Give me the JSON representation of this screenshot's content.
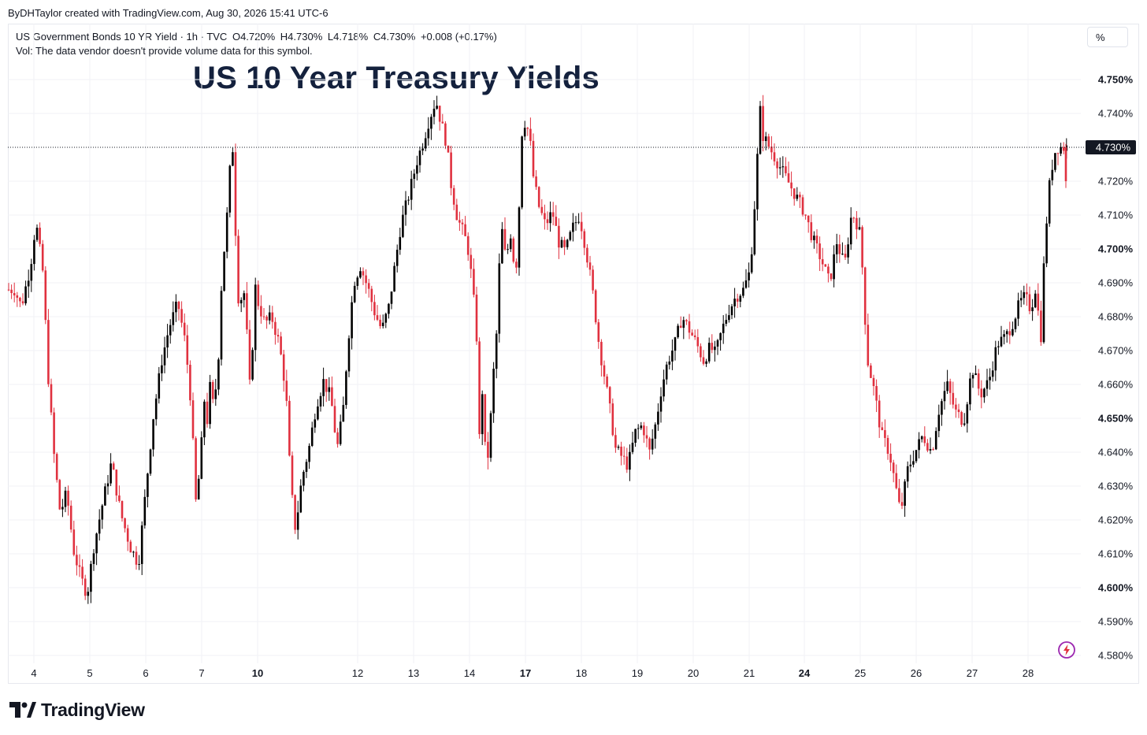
{
  "credit": "ByDHTaylor created with TradingView.com, Aug 30, 2026 15:41 UTC-6",
  "legend": {
    "symbol": "US Government Bonds 10 YR Yield · 1h · TVC",
    "open": "O4.720%",
    "high": "H4.730%",
    "low": "L4.718%",
    "close": "C4.730%",
    "change": "+0.008 (+0.17%)",
    "vol_note": "Vol: The data vendor doesn't provide volume data for this symbol."
  },
  "scale_button": "%",
  "brand": "TradingView",
  "colors": {
    "up": "#000000",
    "down": "#e0313f",
    "brand_icon": "#9c27b0"
  },
  "chart_data": {
    "type": "candlestick",
    "title": "US 10 Year Treasury Yields",
    "ylim": [
      4.575,
      4.755
    ],
    "y_ticks": [
      {
        "value": 4.75,
        "label": "4.750%",
        "bold": true
      },
      {
        "value": 4.74,
        "label": "4.740%",
        "bold": false
      },
      {
        "value": 4.72,
        "label": "4.720%",
        "bold": false
      },
      {
        "value": 4.71,
        "label": "4.710%",
        "bold": false
      },
      {
        "value": 4.7,
        "label": "4.700%",
        "bold": true
      },
      {
        "value": 4.69,
        "label": "4.690%",
        "bold": false
      },
      {
        "value": 4.68,
        "label": "4.680%",
        "bold": false
      },
      {
        "value": 4.67,
        "label": "4.670%",
        "bold": false
      },
      {
        "value": 4.66,
        "label": "4.660%",
        "bold": false
      },
      {
        "value": 4.65,
        "label": "4.650%",
        "bold": true
      },
      {
        "value": 4.64,
        "label": "4.640%",
        "bold": false
      },
      {
        "value": 4.63,
        "label": "4.630%",
        "bold": false
      },
      {
        "value": 4.62,
        "label": "4.620%",
        "bold": false
      },
      {
        "value": 4.61,
        "label": "4.610%",
        "bold": false
      },
      {
        "value": 4.6,
        "label": "4.600%",
        "bold": true
      },
      {
        "value": 4.59,
        "label": "4.590%",
        "bold": false
      },
      {
        "value": 4.58,
        "label": "4.580%",
        "bold": false
      }
    ],
    "last_price": {
      "value": 4.73,
      "label": "4.730%"
    },
    "x_ticks": [
      {
        "label": "4",
        "bold": false
      },
      {
        "label": "5",
        "bold": false
      },
      {
        "label": "6",
        "bold": false
      },
      {
        "label": "7",
        "bold": false
      },
      {
        "label": "10",
        "bold": true
      },
      {
        "label": "12",
        "bold": false
      },
      {
        "label": "13",
        "bold": false
      },
      {
        "label": "14",
        "bold": false
      },
      {
        "label": "17",
        "bold": true
      },
      {
        "label": "18",
        "bold": false
      },
      {
        "label": "19",
        "bold": false
      },
      {
        "label": "20",
        "bold": false
      },
      {
        "label": "21",
        "bold": false
      },
      {
        "label": "24",
        "bold": true
      },
      {
        "label": "25",
        "bold": false
      },
      {
        "label": "26",
        "bold": false
      },
      {
        "label": "27",
        "bold": false
      },
      {
        "label": "28",
        "bold": false
      }
    ],
    "x_domain": [
      3.65,
      28.55
    ],
    "path": [
      [
        3.65,
        4.688
      ],
      [
        3.78,
        4.683
      ],
      [
        3.95,
        4.695
      ],
      [
        4.05,
        4.708
      ],
      [
        4.18,
        4.693
      ],
      [
        4.28,
        4.662
      ],
      [
        4.38,
        4.64
      ],
      [
        4.5,
        4.622
      ],
      [
        4.62,
        4.628
      ],
      [
        4.75,
        4.611
      ],
      [
        4.88,
        4.603
      ],
      [
        5.0,
        4.598
      ],
      [
        5.12,
        4.612
      ],
      [
        5.3,
        4.626
      ],
      [
        5.45,
        4.637
      ],
      [
        5.62,
        4.622
      ],
      [
        5.8,
        4.612
      ],
      [
        5.95,
        4.607
      ],
      [
        6.08,
        4.628
      ],
      [
        6.22,
        4.65
      ],
      [
        6.38,
        4.667
      ],
      [
        6.52,
        4.677
      ],
      [
        6.68,
        4.684
      ],
      [
        6.82,
        4.672
      ],
      [
        6.92,
        4.655
      ],
      [
        7.02,
        4.623
      ],
      [
        7.15,
        4.649
      ],
      [
        7.3,
        4.657
      ],
      [
        7.45,
        4.648
      ],
      [
        7.62,
        4.662
      ],
      [
        7.78,
        4.652
      ],
      [
        7.92,
        4.66
      ],
      [
        8.05,
        4.668
      ],
      [
        8.18,
        4.686
      ],
      [
        8.3,
        4.695
      ],
      [
        8.42,
        4.703
      ],
      [
        8.55,
        4.711
      ],
      [
        8.7,
        4.724
      ],
      [
        8.8,
        4.733
      ],
      [
        8.95,
        4.722
      ],
      [
        9.02,
        4.7
      ],
      [
        9.12,
        4.688
      ],
      [
        9.25,
        4.681
      ],
      [
        9.4,
        4.691
      ],
      [
        9.55,
        4.683
      ],
      [
        9.7,
        4.668
      ],
      [
        9.82,
        4.657
      ],
      [
        9.95,
        4.672
      ],
      [
        10.06,
        4.69
      ],
      [
        10.22,
        4.685
      ],
      [
        10.38,
        4.678
      ],
      [
        10.52,
        4.68
      ],
      [
        10.68,
        4.672
      ],
      [
        10.82,
        4.658
      ],
      [
        10.92,
        4.63
      ],
      [
        11.02,
        4.617
      ],
      [
        11.15,
        4.632
      ],
      [
        11.3,
        4.641
      ],
      [
        11.45,
        4.654
      ],
      [
        11.6,
        4.661
      ],
      [
        11.75,
        4.656
      ],
      [
        11.88,
        4.641
      ],
      [
        12.0,
        4.652
      ],
      [
        12.1,
        4.672
      ],
      [
        12.22,
        4.69
      ],
      [
        12.35,
        4.695
      ],
      [
        12.5,
        4.688
      ],
      [
        12.62,
        4.681
      ],
      [
        12.75,
        4.676
      ],
      [
        12.88,
        4.683
      ],
      [
        12.98,
        4.694
      ],
      [
        13.1,
        4.707
      ],
      [
        13.25,
        4.716
      ],
      [
        13.4,
        4.726
      ],
      [
        13.52,
        4.732
      ],
      [
        13.62,
        4.738
      ],
      [
        13.75,
        4.744
      ],
      [
        13.85,
        4.737
      ],
      [
        13.95,
        4.731
      ],
      [
        14.02,
        4.72
      ],
      [
        14.15,
        4.709
      ],
      [
        14.28,
        4.704
      ],
      [
        14.42,
        4.695
      ],
      [
        14.55,
        4.687
      ],
      [
        14.65,
        4.683
      ],
      [
        14.75,
        4.677
      ],
      [
        14.85,
        4.659
      ],
      [
        14.93,
        4.643
      ],
      [
        15.05,
        4.661
      ],
      [
        15.15,
        4.652
      ],
      [
        15.25,
        4.64
      ],
      [
        15.38,
        4.638
      ],
      [
        15.52,
        4.647
      ],
      [
        15.65,
        4.66
      ],
      [
        15.78,
        4.668
      ],
      [
        15.9,
        4.677
      ],
      [
        16.02,
        4.694
      ],
      [
        16.15,
        4.707
      ],
      [
        16.28,
        4.7
      ],
      [
        16.42,
        4.697
      ],
      [
        16.55,
        4.702
      ],
      [
        16.68,
        4.705
      ],
      [
        16.82,
        4.697
      ],
      [
        16.92,
        4.69
      ],
      [
        17.02,
        4.701
      ],
      [
        17.15,
        4.715
      ],
      [
        17.28,
        4.734
      ],
      [
        17.38,
        4.74
      ],
      [
        17.48,
        4.736
      ],
      [
        17.55,
        4.735
      ],
      [
        17.62,
        4.722
      ],
      [
        17.72,
        4.713
      ],
      [
        17.85,
        4.707
      ],
      [
        17.98,
        4.711
      ],
      [
        18.1,
        4.702
      ],
      [
        18.22,
        4.699
      ],
      [
        18.35,
        4.706
      ],
      [
        18.48,
        4.71
      ],
      [
        18.6,
        4.7
      ],
      [
        18.72,
        4.688
      ],
      [
        18.85,
        4.671
      ],
      [
        18.95,
        4.662
      ],
      [
        19.05,
        4.652
      ],
      [
        19.15,
        4.641
      ],
      [
        19.25,
        4.639
      ],
      [
        19.38,
        4.636
      ],
      [
        19.52,
        4.646
      ],
      [
        19.65,
        4.648
      ],
      [
        19.78,
        4.64
      ],
      [
        19.9,
        4.649
      ],
      [
        20.0,
        4.659
      ],
      [
        20.12,
        4.667
      ],
      [
        20.25,
        4.672
      ],
      [
        20.38,
        4.68
      ],
      [
        20.52,
        4.676
      ],
      [
        20.65,
        4.672
      ],
      [
        20.78,
        4.667
      ],
      [
        20.9,
        4.671
      ],
      [
        21.0,
        4.669
      ],
      [
        21.12,
        4.676
      ],
      [
        21.25,
        4.682
      ],
      [
        21.38,
        4.686
      ],
      [
        21.52,
        4.688
      ],
      [
        21.65,
        4.694
      ],
      [
        21.78,
        4.701
      ],
      [
        21.9,
        4.71
      ],
      [
        22.02,
        4.722
      ],
      [
        22.15,
        4.732
      ],
      [
        22.25,
        4.741
      ],
      [
        22.35,
        4.734
      ]
    ],
    "candles": []
  }
}
